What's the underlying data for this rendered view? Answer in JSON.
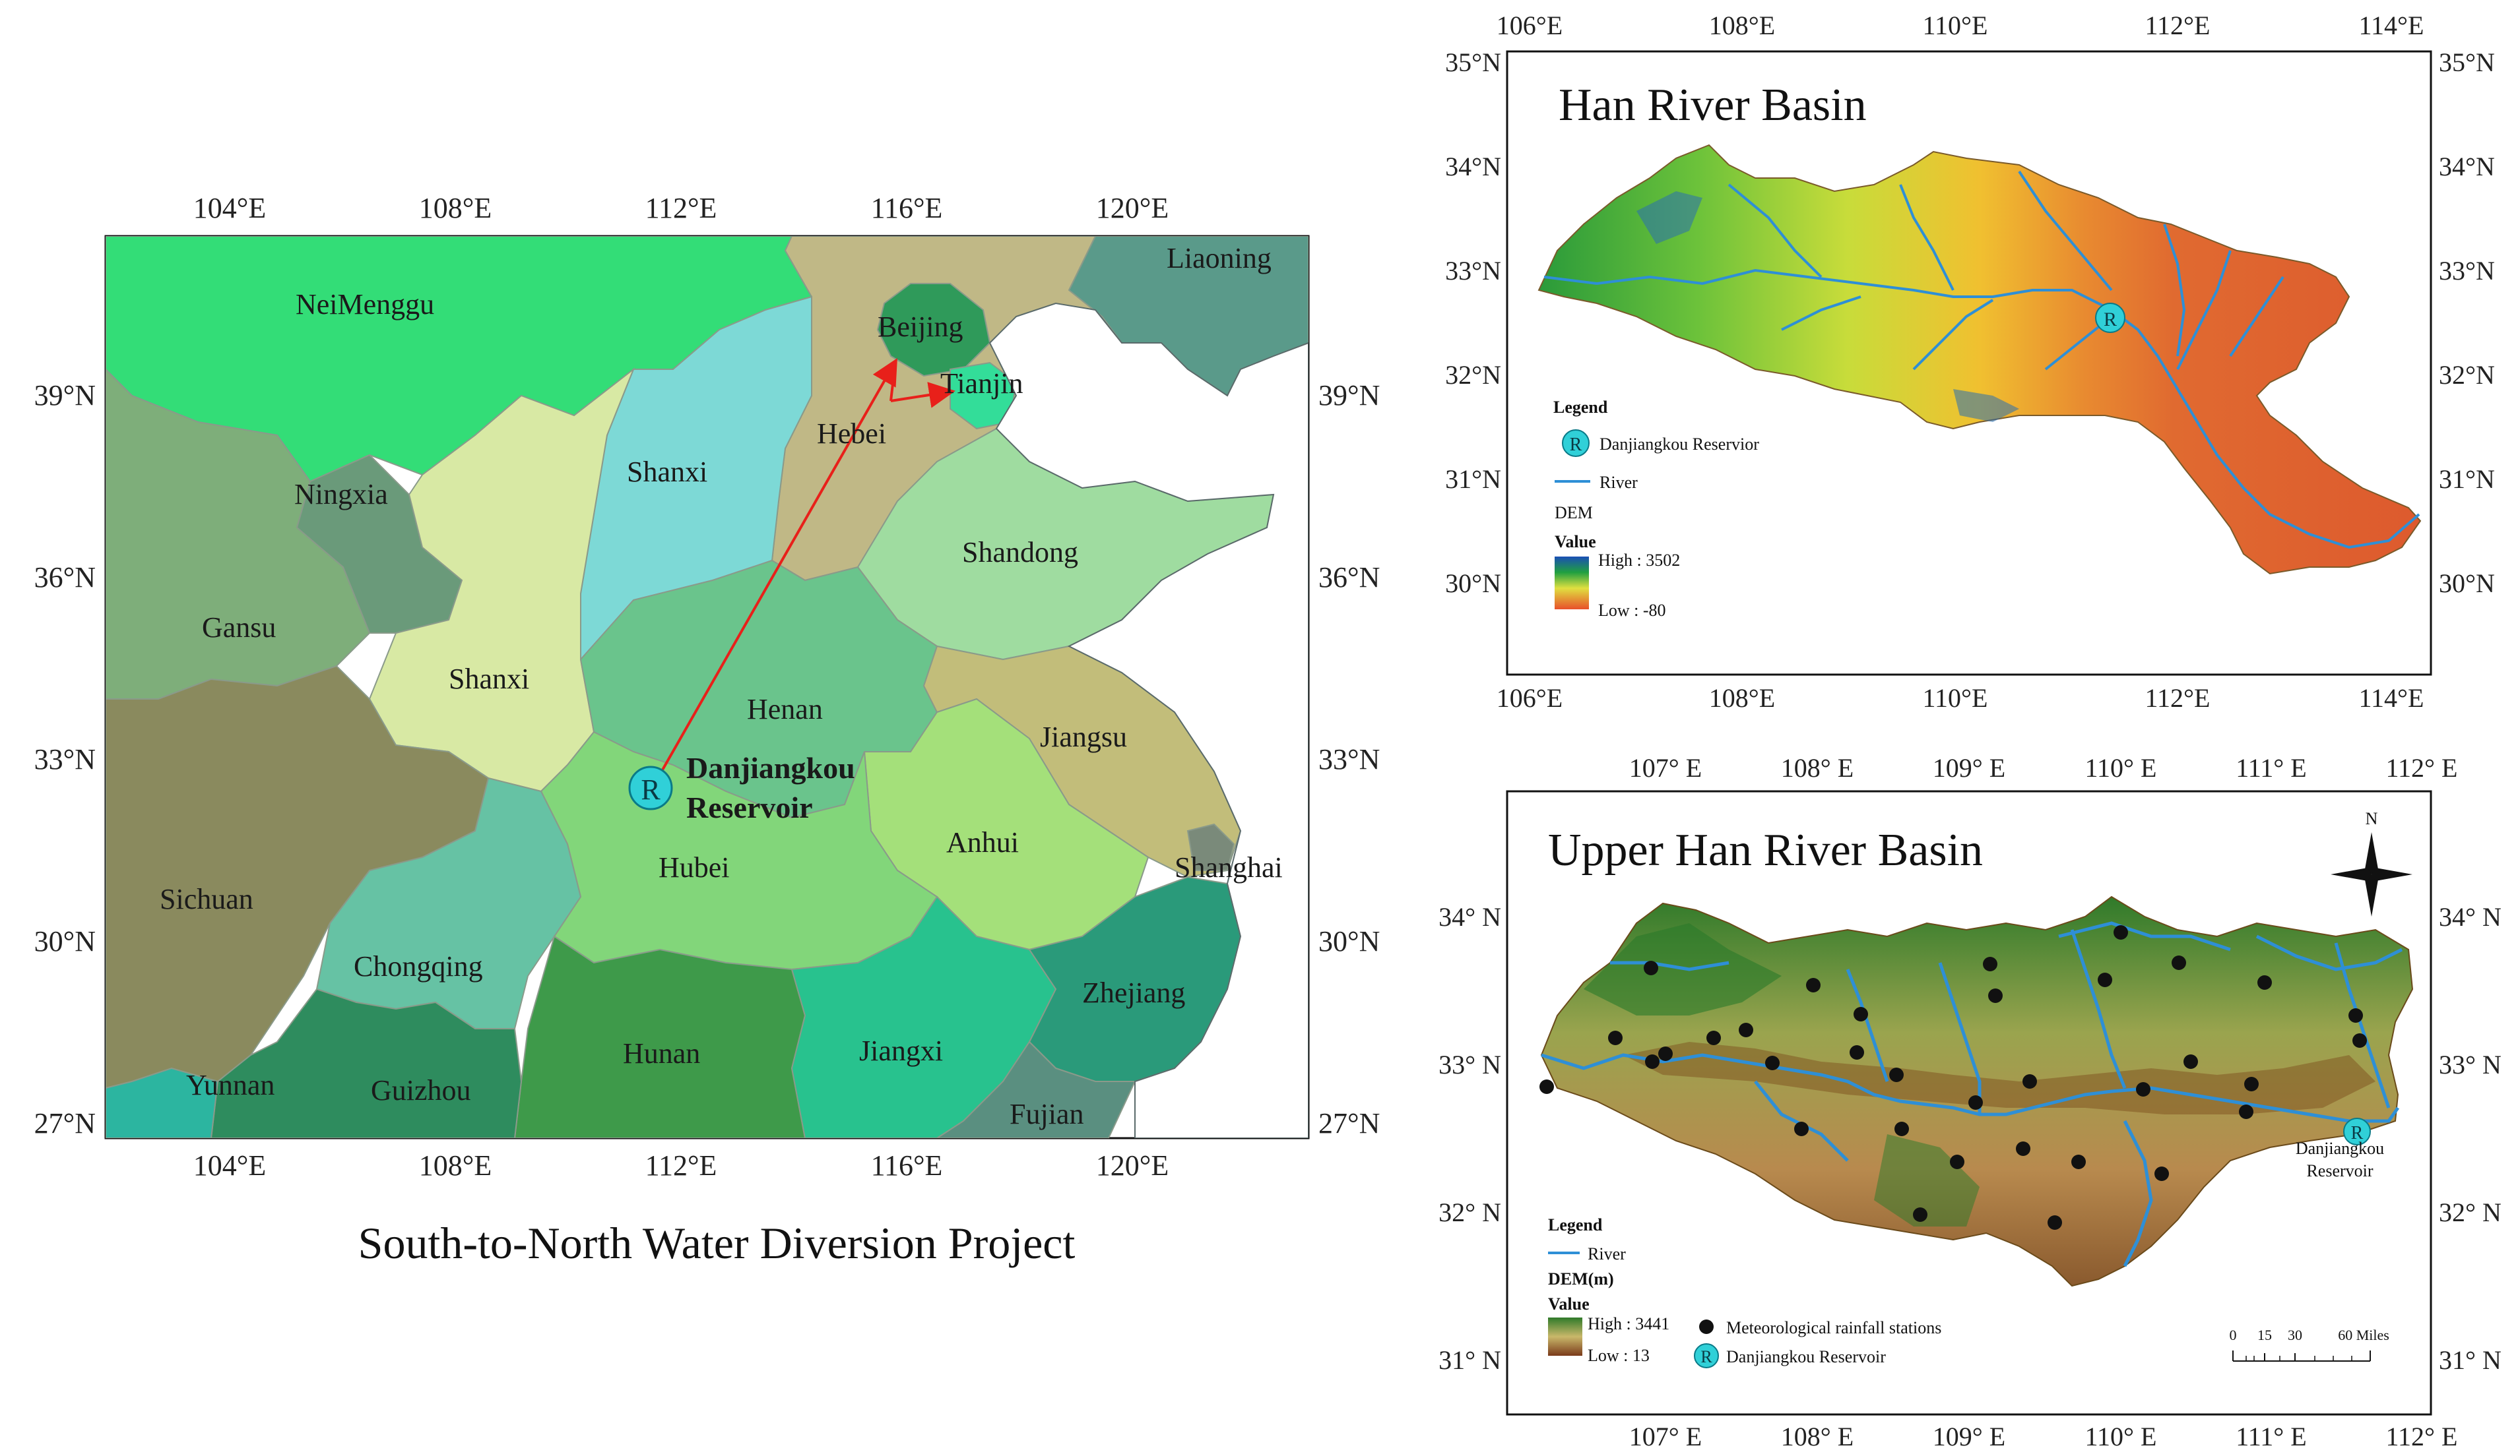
{
  "colors": {
    "arrow": "#e8201a",
    "river": "#2e8fd6",
    "reservoir": "#30d0d8",
    "station": "#111111"
  },
  "left_map": {
    "caption": "South-to-North Water Diversion Project",
    "lon_ticks": [
      "104°E",
      "108°E",
      "112°E",
      "116°E",
      "120°E"
    ],
    "lat_ticks": [
      "39°N",
      "36°N",
      "33°N",
      "30°N",
      "27°N"
    ],
    "reservoir_symbol": "R",
    "reservoir_label": [
      "Danjiangkou",
      "Reservoir"
    ],
    "provinces": {
      "neimenggu": "NeiMenggu",
      "liaoning": "Liaoning",
      "beijing": "Beijing",
      "tianjin": "Tianjin",
      "hebei": "Hebei",
      "shanxi_n": "Shanxi",
      "ningxia": "Ningxia",
      "shandong": "Shandong",
      "gansu": "Gansu",
      "shanxi_s": "Shanxi",
      "henan": "Henan",
      "jiangsu": "Jiangsu",
      "anhui": "Anhui",
      "hubei": "Hubei",
      "sichuan": "Sichuan",
      "shanghai": "Shanghai",
      "chongqing": "Chongqing",
      "zhejiang": "Zhejiang",
      "hunan": "Hunan",
      "jiangxi": "Jiangxi",
      "yunnan": "Yunnan",
      "guizhou": "Guizhou",
      "fujian": "Fujian"
    }
  },
  "han_map": {
    "title": "Han River Basin",
    "lon_ticks": [
      "106°E",
      "108°E",
      "110°E",
      "112°E",
      "114°E"
    ],
    "lat_ticks": [
      "35°N",
      "34°N",
      "33°N",
      "32°N",
      "31°N",
      "30°N"
    ],
    "legend": {
      "title": "Legend",
      "reservoir": "Danjiangkou Reservior",
      "river": "River",
      "dem": "DEM",
      "value": "Value",
      "high": "High : 3502",
      "low": "Low : -80"
    }
  },
  "upper_map": {
    "title": "Upper Han River Basin",
    "lon_ticks": [
      "107° E",
      "108° E",
      "109° E",
      "110° E",
      "111° E",
      "112° E"
    ],
    "lat_ticks": [
      "34° N",
      "33° N",
      "32° N",
      "31° N"
    ],
    "north": "N",
    "reservoir_label": [
      "Danjiangkou",
      "Reservoir"
    ],
    "legend": {
      "title": "Legend",
      "river": "River",
      "dem": "DEM(m)",
      "value": "Value",
      "high": "High : 3441",
      "low": "Low : 13",
      "stations": "Meteorological rainfall stations",
      "reservoir": "Danjiangkou Reservoir"
    },
    "scale_labels": [
      "0",
      "15",
      "30",
      "60 Miles"
    ]
  }
}
